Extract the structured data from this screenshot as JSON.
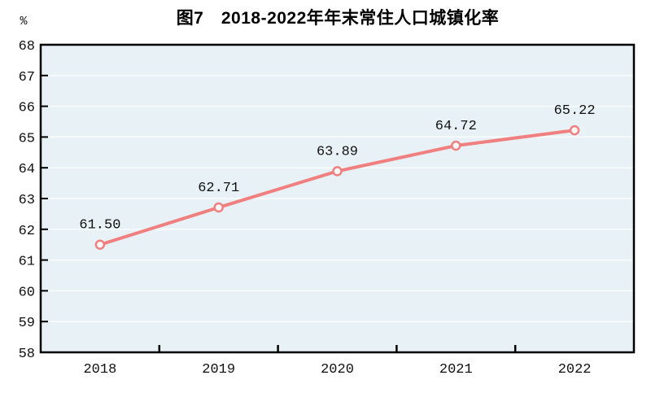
{
  "chart_data": {
    "type": "line",
    "title": "图7　2018-2022年年末常住人口城镇化率",
    "unit_label": "%",
    "categories": [
      "2018",
      "2019",
      "2020",
      "2021",
      "2022"
    ],
    "series": [
      {
        "name": "年末常住人口城镇化率",
        "values": [
          61.5,
          62.71,
          63.89,
          64.72,
          65.22
        ]
      }
    ],
    "data_labels": [
      "61.50",
      "62.71",
      "63.89",
      "64.72",
      "65.22"
    ],
    "ylim": [
      58,
      68
    ],
    "yticks": [
      58,
      59,
      60,
      61,
      62,
      63,
      64,
      65,
      66,
      67,
      68
    ],
    "grid": true,
    "legend": "none",
    "colors": {
      "line": "#f08080",
      "marker_fill": "#fff7f7",
      "plot_bg": "#e8f1f5",
      "grid": "#fafdfe",
      "axis": "#000000",
      "text": "#111111"
    }
  }
}
